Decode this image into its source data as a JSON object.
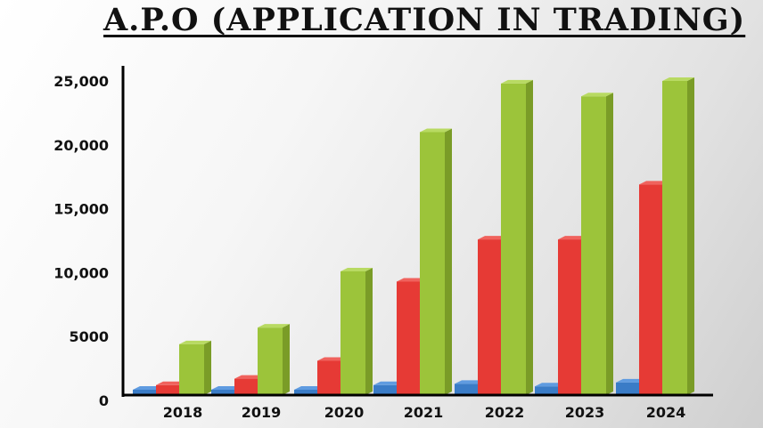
{
  "title": "A.P.O  (APPLICATION IN TRADING)",
  "chart_data": {
    "type": "bar",
    "title": "A.P.O  (APPLICATION IN TRADING)",
    "xlabel": "",
    "ylabel": "",
    "categories": [
      "2018",
      "2019",
      "2020",
      "2021",
      "2022",
      "2023",
      "2024"
    ],
    "series": [
      {
        "color": "#3a7cc7",
        "values": [
          600,
          700,
          800,
          1200,
          1300,
          1100,
          1400
        ]
      },
      {
        "color": "#e63a35",
        "values": [
          1200,
          1700,
          3100,
          9300,
          12600,
          12600,
          16900
        ]
      },
      {
        "color": "#9cc43a",
        "values": [
          4400,
          5700,
          10100,
          21000,
          24800,
          23800,
          25000
        ]
      }
    ],
    "y_tick_labels": [
      "0",
      "5000",
      "10,000",
      "15,000",
      "20,000",
      "25,000"
    ],
    "y_tick_values": [
      0,
      5000,
      10000,
      15000,
      20000,
      25000
    ],
    "ylim": [
      0,
      25000
    ],
    "grid": false,
    "legend": "none",
    "style": "3d"
  }
}
